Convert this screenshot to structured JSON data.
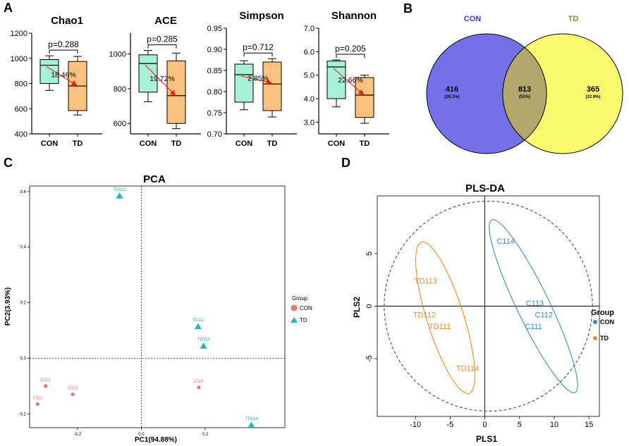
{
  "panel_labels": {
    "a": "A",
    "b": "B",
    "c": "C",
    "d": "D"
  },
  "colors": {
    "con_box": "#a8f0d6",
    "td_box": "#fbc27f",
    "arrow": "#e8201c",
    "venn_con": "#7470e8",
    "venn_td": "#fafa6e",
    "venn_overlap": "#b2a86c",
    "venn_con_title": "#3d3ae0",
    "venn_td_title": "#8d8a3a",
    "pca_con": "#f0736c",
    "pca_td": "#1fb8b2",
    "plsda_con": "#3a8cc8",
    "plsda_td": "#f08a2a"
  },
  "chart_data": [
    {
      "type": "box",
      "title": "Chao1",
      "categories": [
        "CON",
        "TD"
      ],
      "ylim": [
        400,
        1200
      ],
      "yticks": [
        "400",
        "600",
        "800",
        "1000",
        "1200"
      ],
      "yticks_values": [
        400,
        600,
        800,
        1000,
        1200
      ],
      "boxes": [
        {
          "group": "CON",
          "min": 745,
          "q1": 800,
          "median": 945,
          "q3": 990,
          "max": 1020
        },
        {
          "group": "TD",
          "min": 550,
          "q1": 585,
          "median": 780,
          "q3": 975,
          "max": 1015
        }
      ],
      "p_value": "p=0.288",
      "change_label": "18.46%"
    },
    {
      "type": "box",
      "title": "ACE",
      "categories": [
        "CON",
        "TD"
      ],
      "ylim": [
        540,
        1120
      ],
      "yticks": [
        "600",
        "800",
        "1000"
      ],
      "yticks_values": [
        600,
        800,
        1000
      ],
      "boxes": [
        {
          "group": "CON",
          "min": 725,
          "q1": 780,
          "median": 945,
          "q3": 995,
          "max": 1020
        },
        {
          "group": "TD",
          "min": 570,
          "q1": 600,
          "median": 760,
          "q3": 960,
          "max": 1005
        }
      ],
      "p_value": "p=0.285",
      "change_label": "19.72%"
    },
    {
      "type": "box",
      "title": "Simpson",
      "categories": [
        "CON",
        "TD"
      ],
      "ylim": [
        0.7,
        0.95
      ],
      "yticks": [
        "0.70",
        "0.75",
        "0.80",
        "0.85",
        "0.90",
        "0.95"
      ],
      "yticks_values": [
        0.7,
        0.75,
        0.8,
        0.85,
        0.9,
        0.95
      ],
      "boxes": [
        {
          "group": "CON",
          "min": 0.757,
          "q1": 0.775,
          "median": 0.84,
          "q3": 0.865,
          "max": 0.873
        },
        {
          "group": "TD",
          "min": 0.74,
          "q1": 0.755,
          "median": 0.818,
          "q3": 0.87,
          "max": 0.878
        }
      ],
      "p_value": "p=0.712",
      "change_label": "2.85%"
    },
    {
      "type": "box",
      "title": "Shannon",
      "categories": [
        "CON",
        "TD"
      ],
      "ylim": [
        2.5,
        7.0
      ],
      "yticks": [
        "3.0",
        "4.0",
        "5.0",
        "6.0",
        "7.0"
      ],
      "yticks_values": [
        3.0,
        4.0,
        5.0,
        6.0,
        7.0
      ],
      "boxes": [
        {
          "group": "CON",
          "min": 3.65,
          "q1": 4.0,
          "median": 5.35,
          "q3": 5.6,
          "max": 5.65
        },
        {
          "group": "TD",
          "min": 2.95,
          "q1": 3.2,
          "median": 4.15,
          "q3": 4.9,
          "max": 5.0
        }
      ],
      "p_value": "p=0.205",
      "change_label": "22.66%"
    },
    {
      "type": "venn",
      "sets": [
        {
          "name": "CON",
          "only": "416",
          "only_pct": "(26.1%)"
        },
        {
          "name": "TD",
          "only": "365",
          "only_pct": "(22.9%)"
        }
      ],
      "overlap": "813",
      "overlap_pct": "(51%)"
    },
    {
      "type": "scatter",
      "title": "PCA",
      "xlabel": "PC1(94.88%)",
      "ylabel": "PC2(3.93%)",
      "xlim": [
        -0.35,
        0.45
      ],
      "ylim": [
        -0.25,
        0.62
      ],
      "xticks": [
        "-0.2",
        "0.0",
        "0.2"
      ],
      "xticks_values": [
        -0.2,
        0.0,
        0.2
      ],
      "yticks": [
        "-0.2",
        "0.0",
        "0.2",
        "0.4",
        "0.6"
      ],
      "yticks_values": [
        -0.2,
        0.0,
        0.2,
        0.4,
        0.6
      ],
      "legend_title": "Group",
      "legend": [
        "CON",
        "TD"
      ],
      "points": [
        {
          "label": "C111",
          "group": "CON",
          "x": -0.325,
          "y": -0.165
        },
        {
          "label": "C112",
          "group": "CON",
          "x": -0.3,
          "y": -0.1
        },
        {
          "label": "C113",
          "group": "CON",
          "x": -0.215,
          "y": -0.13
        },
        {
          "label": "C114",
          "group": "CON",
          "x": 0.18,
          "y": -0.105
        },
        {
          "label": "TD112",
          "group": "TD",
          "x": -0.068,
          "y": 0.585
        },
        {
          "label": "TD111",
          "group": "TD",
          "x": 0.178,
          "y": 0.115
        },
        {
          "label": "TD113",
          "group": "TD",
          "x": 0.195,
          "y": 0.045
        },
        {
          "label": "TD114",
          "group": "TD",
          "x": 0.345,
          "y": -0.24
        }
      ]
    },
    {
      "type": "scatter",
      "title": "PLS-DA",
      "xlabel": "PLS1",
      "ylabel": "PLS2",
      "xlim": [
        -15.5,
        16.5
      ],
      "ylim": [
        -10.5,
        10.5
      ],
      "xticks": [
        "-10",
        "-5",
        "0",
        "5",
        "10",
        "15"
      ],
      "xticks_values": [
        -10,
        -5,
        0,
        5,
        10,
        15
      ],
      "yticks": [
        "-5",
        "0",
        "5"
      ],
      "yticks_values": [
        -5,
        0,
        5
      ],
      "legend_title": "Group",
      "legend": [
        "CON",
        "TD"
      ],
      "points": [
        {
          "label": "C114",
          "group": "CON",
          "x": 3.0,
          "y": 6.2
        },
        {
          "label": "C113",
          "group": "CON",
          "x": 7.2,
          "y": 0.3
        },
        {
          "label": "C112",
          "group": "CON",
          "x": 8.5,
          "y": -0.8
        },
        {
          "label": "C111",
          "group": "CON",
          "x": 7.0,
          "y": -1.9
        },
        {
          "label": "TD113",
          "group": "TD",
          "x": -8.5,
          "y": 2.4
        },
        {
          "label": "TD112",
          "group": "TD",
          "x": -8.7,
          "y": -0.8
        },
        {
          "label": "TD111",
          "group": "TD",
          "x": -6.5,
          "y": -1.9
        },
        {
          "label": "TD114",
          "group": "TD",
          "x": -2.5,
          "y": -5.9
        }
      ],
      "ellipses": [
        {
          "group": "CON",
          "center": [
            7.0,
            0.0
          ],
          "semi_major": 10.2,
          "semi_minor": 2.1,
          "angle_deg": -53
        },
        {
          "group": "TD",
          "center": [
            -5.7,
            -1.1
          ],
          "semi_major": 8.0,
          "semi_minor": 2.5,
          "angle_deg": -63
        },
        {
          "group": "all",
          "center": [
            0.5,
            0.0
          ],
          "semi_major": 15.0,
          "semi_minor": 10.0,
          "angle_deg": 0
        }
      ]
    }
  ]
}
